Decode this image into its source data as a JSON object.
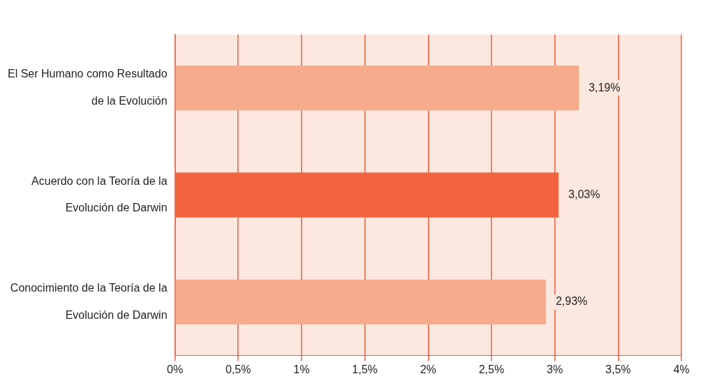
{
  "chart_data": {
    "type": "bar",
    "orientation": "horizontal",
    "categories": [
      "El Ser Humano como Resultado de la Evolución",
      "Acuerdo con la Teoría de la Evolución de Darwin",
      "Conocimiento de la Teoría de la Evolución de Darwin"
    ],
    "values": [
      3.19,
      3.03,
      2.93
    ],
    "colors": [
      "#f7ab8c",
      "#f26440",
      "#f7ab8c"
    ],
    "value_labels": [
      "3,19%",
      "3,03%",
      "2,93%"
    ],
    "xlim": [
      0,
      4
    ],
    "xticks": [
      {
        "value": 0,
        "label": "0%"
      },
      {
        "value": 0.5,
        "label": "0,5%"
      },
      {
        "value": 1,
        "label": "1%"
      },
      {
        "value": 1.5,
        "label": "1,5%"
      },
      {
        "value": 2,
        "label": "2%"
      },
      {
        "value": 2.5,
        "label": "2,5%"
      },
      {
        "value": 3,
        "label": "3%"
      },
      {
        "value": 3.5,
        "label": "3,5%"
      },
      {
        "value": 4,
        "label": "4%"
      }
    ],
    "grid": "x",
    "legend": false
  }
}
